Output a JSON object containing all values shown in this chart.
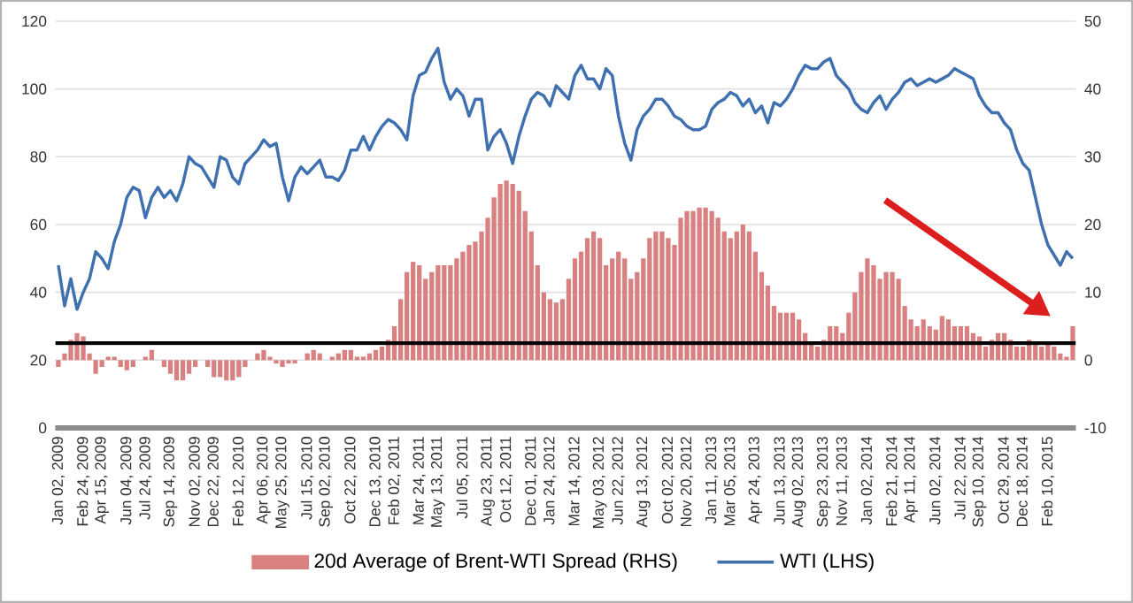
{
  "chart_data": {
    "type": "bar",
    "categories": [
      "Jan 02, 2009",
      null,
      null,
      null,
      "Feb 24, 2009",
      null,
      null,
      "Apr 15, 2009",
      null,
      null,
      null,
      "Jun 04, 2009",
      null,
      null,
      "Jul 24, 2009",
      null,
      null,
      null,
      "Sep 14, 2009",
      null,
      null,
      null,
      "Nov 02, 2009",
      null,
      null,
      "Dec 22, 2009",
      null,
      null,
      null,
      "Feb 12, 2010",
      null,
      null,
      null,
      "Apr 06, 2010",
      null,
      null,
      "May 25, 2010",
      null,
      null,
      null,
      "Jul 15, 2010",
      null,
      null,
      "Sep 02, 2010",
      null,
      null,
      null,
      "Oct 22, 2010",
      null,
      null,
      null,
      "Dec 13, 2010",
      null,
      null,
      "Feb 02, 2011",
      null,
      null,
      null,
      "Mar 24, 2011",
      null,
      null,
      "May 13, 2011",
      null,
      null,
      null,
      "Jul 05, 2011",
      null,
      null,
      null,
      "Aug 23, 2011",
      null,
      null,
      "Oct 12, 2011",
      null,
      null,
      null,
      "Dec 01, 2011",
      null,
      null,
      "Jan 24, 2012",
      null,
      null,
      null,
      "Mar 14, 2012",
      null,
      null,
      null,
      "May 03, 2012",
      null,
      null,
      "Jun 22, 2012",
      null,
      null,
      null,
      "Aug 13, 2012",
      null,
      null,
      null,
      "Oct 02, 2012",
      null,
      null,
      "Nov 20, 2012",
      null,
      null,
      null,
      "Jan 11, 2013",
      null,
      null,
      "Mar 05, 2013",
      null,
      null,
      null,
      "Apr 24, 2013",
      null,
      null,
      null,
      "Jun 13, 2013",
      null,
      null,
      "Aug 02, 2013",
      null,
      null,
      null,
      "Sep 23, 2013",
      null,
      null,
      "Nov 11, 2013",
      null,
      null,
      null,
      "Jan 02, 2014",
      null,
      null,
      null,
      "Feb 21, 2014",
      null,
      null,
      "Apr 11, 2014",
      null,
      null,
      null,
      "Jun 02, 2014",
      null,
      null,
      null,
      "Jul 22, 2014",
      null,
      null,
      "Sep 10, 2014",
      null,
      null,
      null,
      "Oct 29, 2014",
      null,
      null,
      "Dec 18, 2014",
      null,
      null,
      null,
      "Feb 10, 2015",
      null,
      null,
      null,
      null
    ],
    "series": [
      {
        "name": "20d Average of Brent-WTI Spread (RHS)",
        "axis": "y2",
        "color": "#d98080",
        "values": [
          -1,
          1,
          3,
          4,
          3.5,
          1,
          -2,
          -1,
          0.5,
          0.5,
          -1,
          -1.5,
          -1,
          0,
          0.5,
          1.5,
          0,
          -1,
          -2,
          -3,
          -3,
          -2,
          -1,
          0,
          -1,
          -2.5,
          -2.5,
          -3,
          -3,
          -2.5,
          -1,
          0,
          1,
          1.5,
          0.5,
          -0.5,
          -1,
          -0.5,
          -0.5,
          0,
          1,
          1.5,
          1,
          0,
          0.5,
          1,
          1.5,
          1.5,
          0.5,
          0.5,
          1,
          1.5,
          2,
          3,
          5,
          9,
          13,
          14.5,
          14,
          12,
          13,
          14,
          14,
          14,
          15,
          16,
          17,
          17.5,
          19,
          21,
          24,
          26,
          26.5,
          26,
          25,
          22,
          19,
          14,
          10,
          9,
          8.5,
          9,
          12,
          15,
          16,
          18,
          19,
          18,
          14,
          15,
          16,
          15,
          12,
          13,
          15,
          18,
          19,
          19,
          18,
          17,
          21,
          22,
          22,
          22.5,
          22.5,
          22,
          21,
          19,
          18,
          19,
          20,
          19,
          16,
          13,
          11,
          8,
          7,
          7,
          7,
          6,
          4,
          2.5,
          2,
          3,
          5,
          5,
          4,
          7,
          10,
          13,
          15,
          14,
          12,
          13,
          13,
          12,
          8,
          6,
          5,
          6,
          5,
          4.5,
          6.5,
          6,
          5,
          5,
          5,
          4,
          3.5,
          2,
          3,
          4,
          4,
          3,
          2,
          2,
          3,
          2.5,
          2,
          2.5,
          2,
          1,
          0.5,
          5
        ]
      },
      {
        "name": "WTI (LHS)",
        "type": "line",
        "color": "#3f70b0",
        "values": [
          48,
          36,
          44,
          35,
          40,
          44,
          52,
          50,
          47,
          55,
          60,
          68,
          71,
          70,
          62,
          68,
          71,
          68,
          70,
          67,
          72,
          80,
          78,
          77,
          74,
          71,
          80,
          79,
          74,
          72,
          78,
          80,
          82,
          85,
          83,
          84,
          74,
          67,
          74,
          77,
          75,
          77,
          79,
          74,
          74,
          73,
          76,
          82,
          82,
          86,
          82,
          86,
          89,
          91,
          90,
          88,
          85,
          98,
          104,
          105,
          109,
          112,
          102,
          97,
          100,
          98,
          92,
          97,
          97,
          82,
          86,
          88,
          84,
          78,
          86,
          92,
          97,
          99,
          98,
          95,
          101,
          99,
          97,
          104,
          107,
          103,
          103,
          100,
          106,
          104,
          92,
          84,
          79,
          88,
          92,
          94,
          97,
          97,
          95,
          92,
          91,
          89,
          88,
          88,
          89,
          94,
          96,
          97,
          99,
          98,
          95,
          97,
          93,
          95,
          90,
          96,
          95,
          97,
          100,
          104,
          107,
          106,
          106,
          108,
          109,
          104,
          102,
          100,
          96,
          94,
          93,
          96,
          98,
          94,
          97,
          99,
          102,
          103,
          101,
          102,
          103,
          102,
          103,
          104,
          106,
          105,
          104,
          103,
          98,
          95,
          93,
          93,
          90,
          88,
          82,
          78,
          76,
          68,
          60,
          54,
          51,
          48,
          52,
          50
        ]
      }
    ],
    "ylim": [
      0,
      120
    ],
    "yticks": [
      0,
      20,
      40,
      60,
      80,
      100,
      120
    ],
    "y2lim": [
      -10,
      50
    ],
    "y2ticks": [
      -10,
      0,
      10,
      20,
      30,
      40,
      50
    ],
    "grid": "y",
    "legend": "bottom",
    "ref_lines": [
      {
        "axis": "y2",
        "value": 2.5,
        "color": "#000000"
      }
    ]
  }
}
